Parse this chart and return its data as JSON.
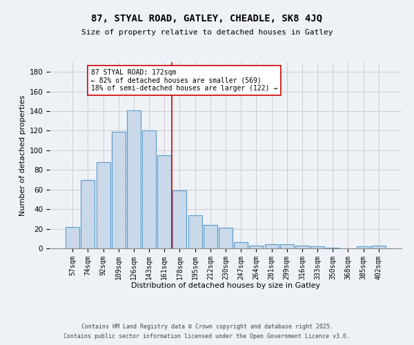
{
  "title1": "87, STYAL ROAD, GATLEY, CHEADLE, SK8 4JQ",
  "title2": "Size of property relative to detached houses in Gatley",
  "xlabel": "Distribution of detached houses by size in Gatley",
  "ylabel": "Number of detached properties",
  "categories": [
    "57sqm",
    "74sqm",
    "92sqm",
    "109sqm",
    "126sqm",
    "143sqm",
    "161sqm",
    "178sqm",
    "195sqm",
    "212sqm",
    "230sqm",
    "247sqm",
    "264sqm",
    "281sqm",
    "299sqm",
    "316sqm",
    "333sqm",
    "350sqm",
    "368sqm",
    "385sqm",
    "402sqm"
  ],
  "values": [
    22,
    70,
    88,
    119,
    141,
    120,
    95,
    59,
    34,
    24,
    21,
    6,
    3,
    4,
    4,
    3,
    2,
    1,
    0,
    2,
    3
  ],
  "bar_color": "#c9d9ea",
  "bar_edge_color": "#5599cc",
  "grid_color": "#cccccc",
  "background_color": "#eef2f7",
  "vline_x": 7.5,
  "vline_color": "#cc0000",
  "annotation_text": "87 STYAL ROAD: 172sqm\n← 82% of detached houses are smaller (569)\n18% of semi-detached houses are larger (122) →",
  "annotation_box_color": "#ffffff",
  "annotation_box_edge_color": "#cc0000",
  "ylim": [
    0,
    190
  ],
  "yticks": [
    0,
    20,
    40,
    60,
    80,
    100,
    120,
    140,
    160,
    180
  ],
  "footer1": "Contains HM Land Registry data © Crown copyright and database right 2025.",
  "footer2": "Contains public sector information licensed under the Open Government Licence v3.0."
}
